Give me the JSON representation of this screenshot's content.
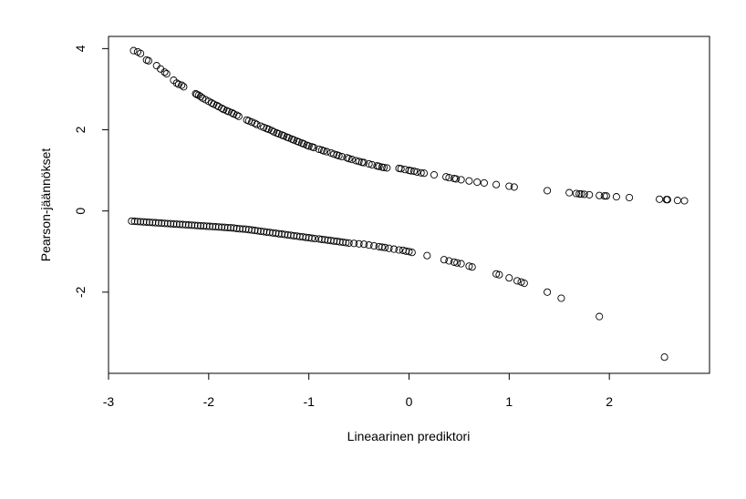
{
  "chart_data": {
    "type": "scatter",
    "title": "",
    "xlabel": "Lineaarinen prediktori",
    "ylabel": "Pearson-jäännökset",
    "xlim": [
      -3,
      3
    ],
    "ylim": [
      -4,
      4.3
    ],
    "x_ticks": [
      -3,
      -2,
      -1,
      0,
      1,
      2
    ],
    "y_ticks": [
      -2,
      0,
      2,
      4
    ],
    "grid": false,
    "legend": "none",
    "marker": "open-circle",
    "colors": {
      "points": "#000000",
      "axes": "#000000",
      "background": "#ffffff"
    },
    "series": [
      {
        "x": [
          -2.75,
          -2.71,
          -2.68,
          -2.62,
          -2.6,
          -2.52,
          -2.48,
          -2.44,
          -2.42,
          -2.35,
          -2.32,
          -2.3,
          -2.27,
          -2.25,
          -2.13,
          -2.12,
          -2.1,
          -2.08,
          -2.06,
          -2.03,
          -2.0,
          -1.97,
          -1.95,
          -1.92,
          -1.9,
          -1.87,
          -1.85,
          -1.82,
          -1.8,
          -1.77,
          -1.75,
          -1.72,
          -1.7,
          -1.62,
          -1.6,
          -1.57,
          -1.54,
          -1.52,
          -1.48,
          -1.45,
          -1.42,
          -1.4,
          -1.37,
          -1.35,
          -1.32,
          -1.3,
          -1.27,
          -1.25,
          -1.22,
          -1.2,
          -1.17,
          -1.15,
          -1.12,
          -1.1,
          -1.07,
          -1.05,
          -1.02,
          -1.0,
          -0.97,
          -0.95,
          -0.9,
          -0.87,
          -0.85,
          -0.82,
          -0.78,
          -0.75,
          -0.72,
          -0.7,
          -0.67,
          -0.62,
          -0.6,
          -0.57,
          -0.53,
          -0.5,
          -0.47,
          -0.45,
          -0.4,
          -0.37,
          -0.32,
          -0.3,
          -0.27,
          -0.25,
          -0.22,
          -0.1,
          -0.08,
          -0.04,
          0.0,
          0.02,
          0.05,
          0.08,
          0.12,
          0.15,
          0.25,
          0.37,
          0.4,
          0.45,
          0.47,
          0.52,
          0.6,
          0.68,
          0.75,
          0.87,
          1.0,
          1.05,
          1.38,
          1.6,
          1.67,
          1.7,
          1.72,
          1.75,
          1.8,
          1.9,
          1.95,
          1.97,
          2.07,
          2.2,
          2.5,
          2.57,
          2.58,
          2.68,
          2.75
        ],
        "y": [
          3.95,
          3.92,
          3.88,
          3.72,
          3.7,
          3.58,
          3.5,
          3.42,
          3.38,
          3.22,
          3.15,
          3.12,
          3.1,
          3.06,
          2.89,
          2.87,
          2.85,
          2.82,
          2.78,
          2.74,
          2.7,
          2.66,
          2.63,
          2.6,
          2.57,
          2.53,
          2.5,
          2.47,
          2.45,
          2.42,
          2.39,
          2.36,
          2.33,
          2.24,
          2.22,
          2.19,
          2.16,
          2.13,
          2.09,
          2.06,
          2.03,
          2.01,
          1.98,
          1.95,
          1.92,
          1.9,
          1.87,
          1.85,
          1.82,
          1.8,
          1.77,
          1.75,
          1.72,
          1.7,
          1.67,
          1.65,
          1.62,
          1.6,
          1.58,
          1.56,
          1.52,
          1.5,
          1.48,
          1.46,
          1.43,
          1.4,
          1.38,
          1.36,
          1.34,
          1.31,
          1.29,
          1.27,
          1.24,
          1.22,
          1.2,
          1.19,
          1.16,
          1.14,
          1.11,
          1.1,
          1.08,
          1.07,
          1.06,
          1.05,
          1.04,
          1.02,
          1.0,
          0.99,
          0.98,
          0.96,
          0.94,
          0.93,
          0.89,
          0.84,
          0.82,
          0.8,
          0.79,
          0.77,
          0.74,
          0.71,
          0.69,
          0.65,
          0.61,
          0.59,
          0.5,
          0.45,
          0.43,
          0.42,
          0.42,
          0.41,
          0.4,
          0.38,
          0.37,
          0.37,
          0.35,
          0.33,
          0.29,
          0.28,
          0.28,
          0.26,
          0.25
        ]
      },
      {
        "x": [
          -2.77,
          -2.74,
          -2.71,
          -2.68,
          -2.65,
          -2.62,
          -2.59,
          -2.56,
          -2.53,
          -2.5,
          -2.47,
          -2.44,
          -2.41,
          -2.38,
          -2.35,
          -2.32,
          -2.29,
          -2.26,
          -2.23,
          -2.2,
          -2.17,
          -2.14,
          -2.11,
          -2.08,
          -2.05,
          -2.02,
          -1.99,
          -1.96,
          -1.93,
          -1.9,
          -1.87,
          -1.84,
          -1.81,
          -1.78,
          -1.75,
          -1.72,
          -1.69,
          -1.66,
          -1.63,
          -1.6,
          -1.57,
          -1.54,
          -1.51,
          -1.48,
          -1.45,
          -1.42,
          -1.39,
          -1.36,
          -1.33,
          -1.3,
          -1.27,
          -1.24,
          -1.21,
          -1.18,
          -1.15,
          -1.12,
          -1.09,
          -1.06,
          -1.03,
          -1.0,
          -0.97,
          -0.94,
          -0.9,
          -0.87,
          -0.84,
          -0.81,
          -0.78,
          -0.75,
          -0.72,
          -0.69,
          -0.66,
          -0.63,
          -0.6,
          -0.55,
          -0.5,
          -0.45,
          -0.4,
          -0.35,
          -0.3,
          -0.27,
          -0.24,
          -0.2,
          -0.15,
          -0.1,
          -0.06,
          -0.03,
          0.0,
          0.03,
          0.18,
          0.35,
          0.4,
          0.45,
          0.48,
          0.52,
          0.6,
          0.63,
          0.87,
          0.9,
          1.0,
          1.08,
          1.12,
          1.15,
          1.38,
          1.52,
          1.9,
          2.55
        ],
        "y": [
          -0.25,
          -0.255,
          -0.26,
          -0.265,
          -0.27,
          -0.275,
          -0.28,
          -0.285,
          -0.29,
          -0.295,
          -0.3,
          -0.305,
          -0.31,
          -0.315,
          -0.32,
          -0.325,
          -0.33,
          -0.335,
          -0.34,
          -0.345,
          -0.35,
          -0.355,
          -0.36,
          -0.365,
          -0.37,
          -0.375,
          -0.38,
          -0.385,
          -0.39,
          -0.395,
          -0.4,
          -0.405,
          -0.41,
          -0.415,
          -0.42,
          -0.43,
          -0.44,
          -0.445,
          -0.45,
          -0.46,
          -0.47,
          -0.48,
          -0.49,
          -0.5,
          -0.51,
          -0.52,
          -0.53,
          -0.54,
          -0.55,
          -0.56,
          -0.57,
          -0.58,
          -0.59,
          -0.6,
          -0.61,
          -0.62,
          -0.63,
          -0.64,
          -0.65,
          -0.66,
          -0.67,
          -0.68,
          -0.69,
          -0.7,
          -0.71,
          -0.72,
          -0.73,
          -0.74,
          -0.75,
          -0.76,
          -0.77,
          -0.78,
          -0.79,
          -0.8,
          -0.81,
          -0.82,
          -0.84,
          -0.86,
          -0.88,
          -0.89,
          -0.9,
          -0.92,
          -0.94,
          -0.96,
          -0.97,
          -0.99,
          -1.0,
          -1.02,
          -1.1,
          -1.2,
          -1.23,
          -1.26,
          -1.28,
          -1.3,
          -1.36,
          -1.38,
          -1.55,
          -1.57,
          -1.65,
          -1.72,
          -1.75,
          -1.78,
          -2.0,
          -2.15,
          -2.6,
          -3.6
        ]
      }
    ]
  }
}
